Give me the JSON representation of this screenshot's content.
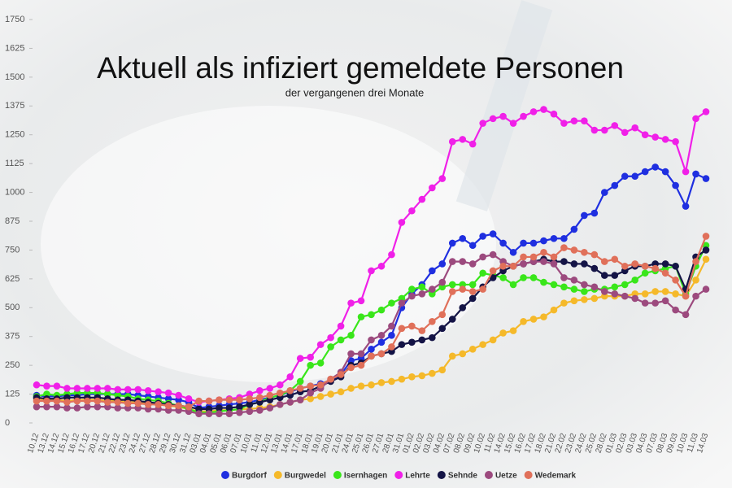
{
  "chart_data": {
    "type": "line",
    "title": "Aktuell als infiziert gemeldete Personen",
    "subtitle": "der vergangenen drei Monate",
    "categories": [
      "10.12",
      "13.12",
      "14.12",
      "15.12",
      "16.12",
      "17.12",
      "20.12",
      "21.12",
      "22.12",
      "23.12",
      "24.12",
      "27.12",
      "28.12",
      "29.12",
      "30.12",
      "31.12",
      "03.01",
      "04.01",
      "05.01",
      "06.01",
      "07.01",
      "10.01",
      "11.01",
      "12.01",
      "13.01",
      "14.01",
      "17.01",
      "18.01",
      "19.01",
      "20.01",
      "21.01",
      "24.01",
      "25.01",
      "26.01",
      "27.01",
      "28.01",
      "31.01",
      "01.02",
      "02.02",
      "03.02",
      "04.02",
      "07.02",
      "08.02",
      "09.02",
      "10.02",
      "11.02",
      "14.02",
      "15.02",
      "16.02",
      "17.02",
      "18.02",
      "21.02",
      "22.02",
      "23.02",
      "24.02",
      "25.02",
      "28.02",
      "01.03",
      "02.03",
      "03.03",
      "04.03",
      "07.03",
      "08.03",
      "09.03",
      "10.03",
      "11.03",
      "14.03"
    ],
    "series": [
      {
        "name": "Burgdorf",
        "color": "#1f2fe0",
        "values": [
          120,
          115,
          115,
          120,
          120,
          125,
          125,
          125,
          125,
          125,
          120,
          115,
          110,
          105,
          100,
          90,
          65,
          70,
          75,
          80,
          85,
          90,
          100,
          110,
          120,
          135,
          150,
          160,
          170,
          185,
          210,
          270,
          280,
          320,
          350,
          380,
          500,
          560,
          600,
          660,
          690,
          780,
          800,
          770,
          810,
          820,
          780,
          740,
          780,
          780,
          790,
          800,
          800,
          840,
          900,
          910,
          1000,
          1030,
          1070,
          1070,
          1090,
          1110,
          1090,
          1030,
          940,
          1080,
          1060
        ]
      },
      {
        "name": "Burgwedel",
        "color": "#f5b92a",
        "values": [
          105,
          100,
          100,
          95,
          100,
          100,
          100,
          95,
          95,
          90,
          90,
          85,
          80,
          75,
          70,
          60,
          50,
          50,
          55,
          55,
          60,
          60,
          65,
          70,
          80,
          90,
          100,
          105,
          115,
          125,
          135,
          150,
          160,
          165,
          175,
          180,
          190,
          200,
          205,
          215,
          230,
          290,
          300,
          320,
          340,
          360,
          390,
          400,
          440,
          450,
          460,
          490,
          520,
          530,
          535,
          540,
          550,
          550,
          550,
          560,
          560,
          570,
          570,
          560,
          550,
          620,
          710
        ]
      },
      {
        "name": "Isernhagen",
        "color": "#39e61a",
        "values": [
          115,
          125,
          120,
          125,
          130,
          130,
          130,
          125,
          120,
          115,
          105,
          100,
          95,
          85,
          75,
          60,
          45,
          45,
          50,
          55,
          60,
          80,
          90,
          110,
          120,
          140,
          180,
          250,
          260,
          330,
          360,
          380,
          460,
          470,
          490,
          520,
          540,
          580,
          590,
          560,
          590,
          600,
          600,
          600,
          650,
          640,
          630,
          600,
          630,
          630,
          610,
          600,
          590,
          580,
          570,
          580,
          580,
          590,
          600,
          620,
          650,
          660,
          670,
          680,
          560,
          680,
          770
        ]
      },
      {
        "name": "Lehrte",
        "color": "#f020e8",
        "values": [
          165,
          160,
          160,
          150,
          150,
          150,
          150,
          150,
          145,
          145,
          145,
          140,
          135,
          130,
          120,
          105,
          90,
          95,
          100,
          105,
          110,
          125,
          140,
          150,
          165,
          200,
          280,
          285,
          340,
          370,
          420,
          520,
          530,
          660,
          680,
          730,
          870,
          920,
          970,
          1020,
          1060,
          1220,
          1230,
          1210,
          1300,
          1320,
          1330,
          1300,
          1330,
          1350,
          1360,
          1340,
          1300,
          1310,
          1310,
          1270,
          1270,
          1290,
          1260,
          1280,
          1250,
          1240,
          1230,
          1220,
          1090,
          1320,
          1350
        ]
      },
      {
        "name": "Sehnde",
        "color": "#141446",
        "values": [
          110,
          105,
          105,
          110,
          110,
          110,
          110,
          105,
          100,
          100,
          95,
          90,
          85,
          80,
          75,
          70,
          60,
          60,
          65,
          65,
          70,
          80,
          90,
          100,
          110,
          120,
          135,
          140,
          160,
          180,
          200,
          250,
          260,
          290,
          300,
          310,
          340,
          350,
          360,
          370,
          410,
          450,
          500,
          540,
          590,
          630,
          660,
          680,
          690,
          700,
          710,
          700,
          700,
          690,
          690,
          670,
          640,
          640,
          660,
          680,
          680,
          690,
          690,
          680,
          580,
          720,
          750
        ]
      },
      {
        "name": "Uetze",
        "color": "#9c4a7e",
        "values": [
          70,
          70,
          70,
          65,
          65,
          70,
          70,
          70,
          65,
          65,
          65,
          60,
          60,
          55,
          55,
          50,
          40,
          40,
          40,
          40,
          45,
          50,
          55,
          65,
          80,
          90,
          100,
          130,
          150,
          190,
          220,
          300,
          300,
          360,
          380,
          420,
          520,
          550,
          560,
          580,
          610,
          700,
          700,
          690,
          720,
          730,
          700,
          680,
          690,
          700,
          700,
          690,
          630,
          620,
          600,
          590,
          570,
          560,
          550,
          540,
          520,
          520,
          530,
          490,
          470,
          550,
          580
        ]
      },
      {
        "name": "Wedemark",
        "color": "#e0705a",
        "values": [
          95,
          95,
          95,
          90,
          95,
          95,
          95,
          90,
          90,
          85,
          85,
          80,
          80,
          75,
          75,
          70,
          95,
          95,
          100,
          100,
          100,
          105,
          110,
          120,
          130,
          140,
          150,
          160,
          165,
          190,
          210,
          240,
          250,
          290,
          300,
          330,
          410,
          420,
          400,
          440,
          470,
          570,
          580,
          570,
          580,
          660,
          680,
          680,
          720,
          720,
          740,
          720,
          760,
          750,
          740,
          730,
          700,
          710,
          680,
          690,
          680,
          670,
          650,
          620,
          550,
          700,
          810
        ]
      }
    ],
    "ylim": [
      0,
      1750
    ],
    "yticks": [
      0,
      125,
      250,
      375,
      500,
      625,
      750,
      875,
      1000,
      1125,
      1250,
      1375,
      1500,
      1625,
      1750
    ]
  }
}
